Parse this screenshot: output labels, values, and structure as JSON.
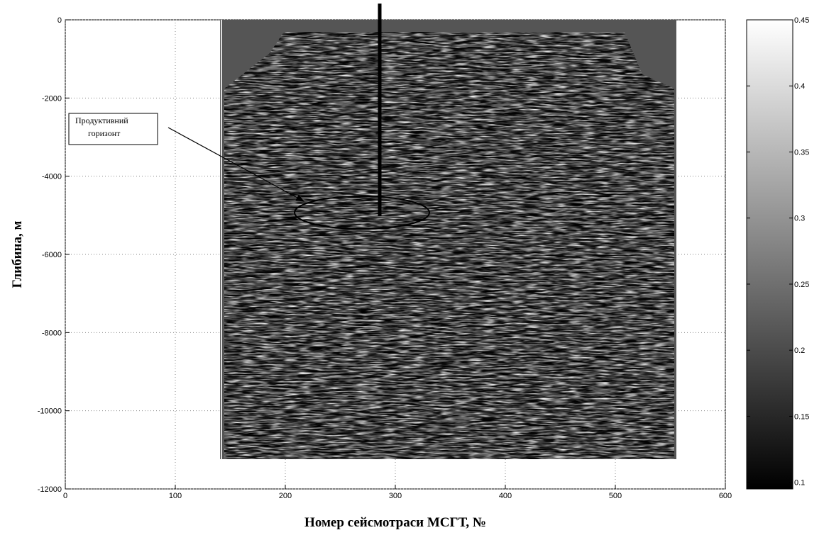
{
  "chart_data": {
    "type": "heatmap",
    "xlabel": "Номер сейсмотраси МСГТ, №",
    "ylabel": "Глибина, м",
    "xlim": [
      0,
      600
    ],
    "xticks": [
      0,
      100,
      200,
      300,
      400,
      500,
      600
    ],
    "ylim": [
      -12000,
      0
    ],
    "yticks": [
      -12000,
      -10000,
      -8000,
      -6000,
      -4000,
      -2000,
      0
    ],
    "grid": true,
    "colorbar": {
      "colormap": "gray",
      "clim": [
        0.095,
        0.45
      ],
      "ticks": [
        0.1,
        0.15,
        0.2,
        0.25,
        0.3,
        0.35,
        0.4,
        0.45
      ]
    },
    "annotation": [
      "Продуктивний",
      "горизонт"
    ]
  }
}
